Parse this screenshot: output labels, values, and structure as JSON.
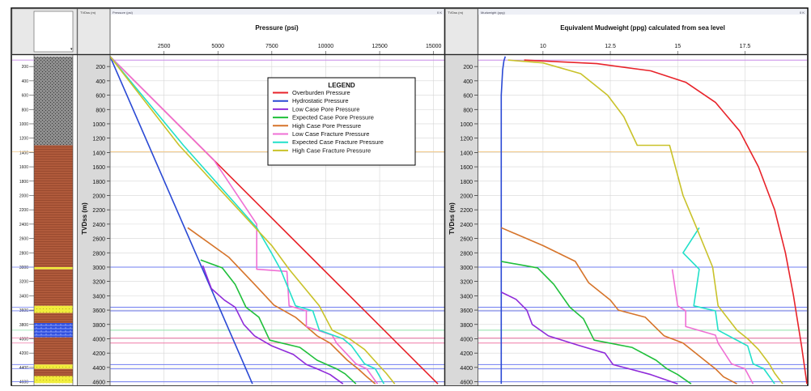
{
  "panels": {
    "lith_header": "",
    "tvd_header": "TVDss (m)",
    "pressure_header": "Pressure (psi)",
    "tvd2_header": "TVDss (m)",
    "mud_header": "Mudweight (ppg)",
    "corner_mark": "0 K"
  },
  "colors": {
    "overburden": "#e8232a",
    "hydrostatic": "#2a49d4",
    "low_pore": "#8f2bd9",
    "expected_pore": "#1fbf3a",
    "high_pore": "#d6742a",
    "low_frac": "#ef6fd4",
    "expected_frac": "#22e0c9",
    "high_frac": "#c9c22a",
    "shale": "#9a9a9a",
    "claystone": "#b35a3a",
    "sand": "#f0ec3a",
    "limestone": "#2a4ae0"
  },
  "lithology": {
    "depth_labels": [
      "200",
      "400",
      "600",
      "800",
      "1000",
      "1200",
      "1400",
      "1600",
      "1800",
      "2000",
      "2200",
      "2400",
      "2600",
      "2800",
      "3000",
      "3200",
      "3400",
      "3600",
      "3800",
      "4000",
      "4200",
      "4400",
      "4600"
    ],
    "units": [
      {
        "from": 60,
        "to": 1300,
        "type": "shale"
      },
      {
        "from": 1300,
        "to": 3000,
        "type": "claystone"
      },
      {
        "from": 3000,
        "to": 3030,
        "type": "sand"
      },
      {
        "from": 3030,
        "to": 3540,
        "type": "claystone"
      },
      {
        "from": 3540,
        "to": 3640,
        "type": "sand"
      },
      {
        "from": 3640,
        "to": 3780,
        "type": "claystone"
      },
      {
        "from": 3780,
        "to": 3980,
        "type": "limestone"
      },
      {
        "from": 3980,
        "to": 4360,
        "type": "claystone"
      },
      {
        "from": 4360,
        "to": 4420,
        "type": "sand"
      },
      {
        "from": 4420,
        "to": 4520,
        "type": "claystone"
      },
      {
        "from": 4520,
        "to": 4620,
        "type": "sand"
      }
    ]
  },
  "markers": [
    {
      "depth": 110,
      "color": "#c88ae8"
    },
    {
      "depth": 1390,
      "color": "#f2c98a"
    },
    {
      "depth": 3000,
      "color": "#6f7df0"
    },
    {
      "depth": 3560,
      "color": "#6f7df0"
    },
    {
      "depth": 3610,
      "color": "#6f7df0"
    },
    {
      "depth": 3880,
      "color": "#8fe0a8"
    },
    {
      "depth": 3990,
      "color": "#f07aa8"
    },
    {
      "depth": 4060,
      "color": "#f07aa8"
    },
    {
      "depth": 4360,
      "color": "#6f7df0"
    },
    {
      "depth": 4420,
      "color": "#6f7df0"
    },
    {
      "depth": 4600,
      "color": "#6f7df0"
    }
  ],
  "chart_data": [
    {
      "type": "line",
      "title": "Pressure (psi)",
      "xlabel": "Pressure (psi)",
      "ylabel": "TVDss (m)",
      "xlim": [
        0,
        15500
      ],
      "ylim": [
        4650,
        40
      ],
      "x_ticks": [
        "2500",
        "5000",
        "7500",
        "10000",
        "12500",
        "15000"
      ],
      "y_ticks": [
        "200",
        "400",
        "600",
        "800",
        "1000",
        "1200",
        "1400",
        "1600",
        "1800",
        "2000",
        "2200",
        "2400",
        "2600",
        "2800",
        "3000",
        "3200",
        "3400",
        "3600",
        "3800",
        "4000",
        "4200",
        "4400",
        "4600"
      ],
      "grid": true,
      "legend": {
        "title": "LEGEND",
        "position": "top-center",
        "entries": [
          "Overburden Pressure",
          "Hydrostatic Pressure",
          "Low Case Pore Pressure",
          "Expected Case Pore Pressure",
          "High Case Pore Pressure",
          "Low Case Fracture Pressure",
          "Expected Case Fracture Pressure",
          "High Case Fracture Pressure"
        ]
      },
      "series": [
        {
          "name": "Overburden Pressure",
          "color": "#e8232a",
          "points": [
            [
              0,
              60
            ],
            [
              15200,
              4630
            ]
          ]
        },
        {
          "name": "Hydrostatic Pressure",
          "color": "#2a49d4",
          "points": [
            [
              0,
              60
            ],
            [
              6600,
              4630
            ]
          ]
        },
        {
          "name": "Low Case Pore Pressure",
          "color": "#8f2bd9",
          "points": [
            [
              4300,
              2980
            ],
            [
              4700,
              3300
            ],
            [
              5300,
              3460
            ],
            [
              5800,
              3560
            ],
            [
              6200,
              3800
            ],
            [
              6700,
              3960
            ],
            [
              7500,
              4100
            ],
            [
              8500,
              4220
            ],
            [
              9100,
              4360
            ],
            [
              9600,
              4420
            ],
            [
              10200,
              4500
            ],
            [
              10800,
              4630
            ]
          ]
        },
        {
          "name": "Expected Case Pore Pressure",
          "color": "#1fbf3a",
          "points": [
            [
              4200,
              2900
            ],
            [
              5200,
              3010
            ],
            [
              5800,
              3240
            ],
            [
              6300,
              3560
            ],
            [
              6900,
              3700
            ],
            [
              7400,
              4020
            ],
            [
              8800,
              4120
            ],
            [
              9600,
              4300
            ],
            [
              10500,
              4420
            ],
            [
              10900,
              4490
            ],
            [
              11400,
              4630
            ]
          ]
        },
        {
          "name": "High Case Pore Pressure",
          "color": "#d6742a",
          "points": [
            [
              3600,
              2450
            ],
            [
              5500,
              2860
            ],
            [
              6700,
              3240
            ],
            [
              7600,
              3530
            ],
            [
              8600,
              3700
            ],
            [
              9600,
              3960
            ],
            [
              10200,
              4060
            ],
            [
              11000,
              4300
            ],
            [
              11500,
              4420
            ],
            [
              11900,
              4530
            ],
            [
              12300,
              4630
            ]
          ]
        },
        {
          "name": "Low Case Fracture Pressure",
          "color": "#ef6fd4",
          "points": [
            [
              0,
              60
            ],
            [
              4800,
              1500
            ],
            [
              6800,
              2400
            ],
            [
              6800,
              3030
            ],
            [
              8200,
              3060
            ],
            [
              8300,
              3540
            ],
            [
              9100,
              3610
            ],
            [
              9100,
              3830
            ],
            [
              10300,
              3950
            ],
            [
              10500,
              4060
            ],
            [
              11400,
              4350
            ],
            [
              11900,
              4420
            ],
            [
              12400,
              4630
            ]
          ]
        },
        {
          "name": "Expected Case Fracture Pressure",
          "color": "#22e0c9",
          "points": [
            [
              0,
              60
            ],
            [
              3400,
              1300
            ],
            [
              6800,
              2450
            ],
            [
              7500,
              2810
            ],
            [
              7900,
              3030
            ],
            [
              8600,
              3540
            ],
            [
              9400,
              3610
            ],
            [
              9700,
              3880
            ],
            [
              10800,
              4000
            ],
            [
              11200,
              4100
            ],
            [
              11800,
              4350
            ],
            [
              12300,
              4420
            ],
            [
              12700,
              4630
            ]
          ]
        },
        {
          "name": "High Case Fracture Pressure",
          "color": "#c9c22a",
          "points": [
            [
              0,
              60
            ],
            [
              3200,
              1300
            ],
            [
              7500,
              2700
            ],
            [
              8300,
              3030
            ],
            [
              9700,
              3540
            ],
            [
              10300,
              3880
            ],
            [
              11100,
              4000
            ],
            [
              11800,
              4150
            ],
            [
              12400,
              4350
            ],
            [
              12800,
              4480
            ],
            [
              13200,
              4630
            ]
          ]
        }
      ]
    },
    {
      "type": "line",
      "title": "Equivalent Mudweight (ppg) calculated from sea level",
      "xlabel": "Mudweight (ppg)",
      "ylabel": "TVDss (m)",
      "xlim": [
        7.6,
        19.8
      ],
      "ylim": [
        4650,
        40
      ],
      "x_ticks": [
        "10",
        "12.5",
        "15",
        "17.5"
      ],
      "y_ticks": [
        "200",
        "400",
        "600",
        "800",
        "1000",
        "1200",
        "1400",
        "1600",
        "1800",
        "2000",
        "2200",
        "2400",
        "2600",
        "2800",
        "3000",
        "3200",
        "3400",
        "3600",
        "3800",
        "4000",
        "4200",
        "4400",
        "4600"
      ],
      "grid": true,
      "series": [
        {
          "name": "Overburden Pressure",
          "color": "#e8232a",
          "points": [
            [
              9.3,
              110
            ],
            [
              12.0,
              160
            ],
            [
              14.0,
              260
            ],
            [
              15.3,
              420
            ],
            [
              16.4,
              700
            ],
            [
              17.3,
              1100
            ],
            [
              18.0,
              1600
            ],
            [
              18.6,
              2200
            ],
            [
              19.0,
              2800
            ],
            [
              19.3,
              3400
            ],
            [
              19.6,
              4100
            ],
            [
              19.8,
              4630
            ]
          ]
        },
        {
          "name": "Hydrostatic Pressure",
          "color": "#2a49d4",
          "points": [
            [
              8.6,
              60
            ],
            [
              8.55,
              120
            ],
            [
              8.5,
              250
            ],
            [
              8.45,
              600
            ],
            [
              8.45,
              4630
            ]
          ]
        },
        {
          "name": "Low Case Pore Pressure",
          "color": "#8f2bd9",
          "points": [
            [
              8.45,
              3350
            ],
            [
              9.0,
              3450
            ],
            [
              9.4,
              3600
            ],
            [
              9.6,
              3800
            ],
            [
              10.2,
              3960
            ],
            [
              11.3,
              4090
            ],
            [
              12.3,
              4200
            ],
            [
              12.6,
              4360
            ],
            [
              13.2,
              4420
            ],
            [
              14.0,
              4500
            ],
            [
              15.0,
              4630
            ]
          ]
        },
        {
          "name": "Expected Case Pore Pressure",
          "color": "#1fbf3a",
          "points": [
            [
              8.45,
              2920
            ],
            [
              9.8,
              3010
            ],
            [
              10.4,
              3240
            ],
            [
              11.0,
              3560
            ],
            [
              11.5,
              3720
            ],
            [
              11.9,
              4020
            ],
            [
              13.3,
              4120
            ],
            [
              14.2,
              4300
            ],
            [
              14.6,
              4420
            ],
            [
              15.0,
              4500
            ],
            [
              15.5,
              4630
            ]
          ]
        },
        {
          "name": "High Case Pore Pressure",
          "color": "#d6742a",
          "points": [
            [
              8.45,
              2450
            ],
            [
              10.0,
              2700
            ],
            [
              11.2,
              2920
            ],
            [
              11.7,
              3220
            ],
            [
              12.5,
              3460
            ],
            [
              12.8,
              3600
            ],
            [
              13.8,
              3700
            ],
            [
              14.5,
              3960
            ],
            [
              15.2,
              4060
            ],
            [
              16.0,
              4300
            ],
            [
              16.4,
              4420
            ],
            [
              16.7,
              4530
            ],
            [
              17.2,
              4630
            ]
          ]
        },
        {
          "name": "Low Case Fracture Pressure",
          "color": "#ef6fd4",
          "points": [
            [
              14.8,
              3030
            ],
            [
              15.0,
              3540
            ],
            [
              15.3,
              3610
            ],
            [
              15.3,
              3830
            ],
            [
              16.4,
              3950
            ],
            [
              16.5,
              4060
            ],
            [
              17.0,
              4350
            ],
            [
              17.5,
              4420
            ],
            [
              17.8,
              4630
            ]
          ]
        },
        {
          "name": "Expected Case Fracture Pressure",
          "color": "#22e0c9",
          "points": [
            [
              15.8,
              2450
            ],
            [
              15.2,
              2800
            ],
            [
              15.8,
              3030
            ],
            [
              15.6,
              3540
            ],
            [
              16.4,
              3610
            ],
            [
              16.5,
              3880
            ],
            [
              17.1,
              4000
            ],
            [
              17.6,
              4100
            ],
            [
              17.8,
              4350
            ],
            [
              18.2,
              4420
            ],
            [
              18.6,
              4630
            ]
          ]
        },
        {
          "name": "High Case Fracture Pressure",
          "color": "#c9c22a",
          "points": [
            [
              8.7,
              110
            ],
            [
              10.0,
              150
            ],
            [
              11.4,
              300
            ],
            [
              12.4,
              600
            ],
            [
              13.0,
              900
            ],
            [
              13.5,
              1300
            ],
            [
              14.7,
              1300
            ],
            [
              15.2,
              2000
            ],
            [
              15.7,
              2450
            ],
            [
              16.3,
              3000
            ],
            [
              16.5,
              3540
            ],
            [
              17.2,
              3880
            ],
            [
              17.6,
              4000
            ],
            [
              18.0,
              4150
            ],
            [
              18.4,
              4350
            ],
            [
              18.6,
              4480
            ],
            [
              18.9,
              4630
            ]
          ]
        }
      ]
    }
  ]
}
